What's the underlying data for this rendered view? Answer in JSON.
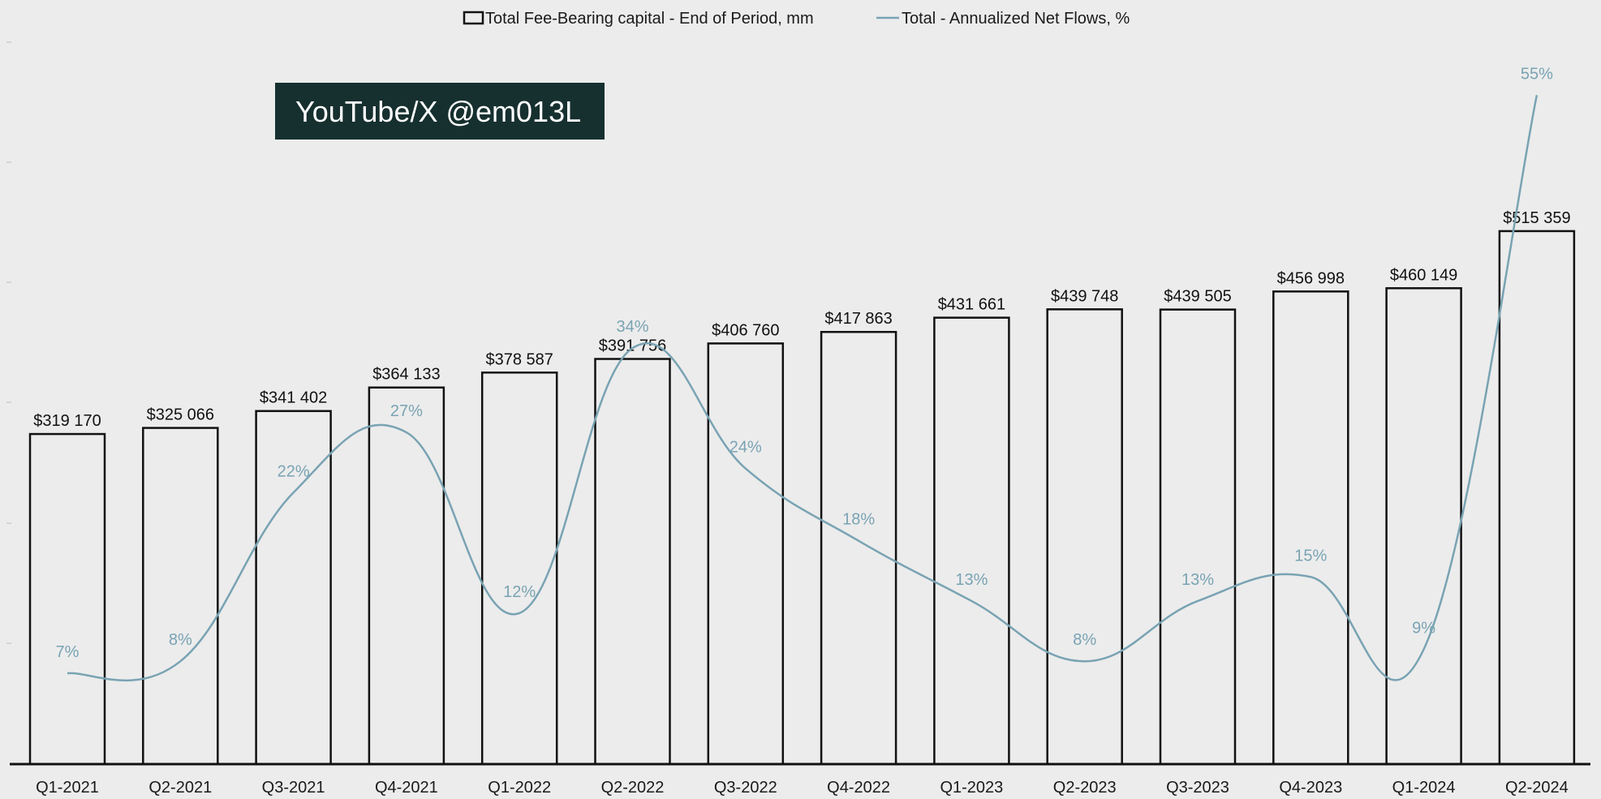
{
  "chart_data": {
    "type": "bar",
    "categories": [
      "Q1-2021",
      "Q2-2021",
      "Q3-2021",
      "Q4-2021",
      "Q1-2022",
      "Q2-2022",
      "Q3-2022",
      "Q4-2022",
      "Q1-2023",
      "Q2-2023",
      "Q3-2023",
      "Q4-2023",
      "Q1-2024",
      "Q2-2024"
    ],
    "series": [
      {
        "name": "Total Fee-Bearing capital - End of Period, mm",
        "type": "bar",
        "values": [
          319170,
          325066,
          341402,
          364133,
          378587,
          391756,
          406760,
          417863,
          431661,
          439748,
          439505,
          456998,
          460149,
          515359
        ],
        "data_labels": [
          "$319 170",
          "$325 066",
          "$341 402",
          "$364 133",
          "$378 587",
          "$391 756",
          "$406 760",
          "$417 863",
          "$431 661",
          "$439 748",
          "$439 505",
          "$456 998",
          "$460 149",
          "$515 359"
        ],
        "color": "#ececec",
        "border_color": "#111111"
      },
      {
        "name": "Total - Annualized Net Flows, %",
        "type": "line",
        "values": [
          7,
          8,
          22,
          27,
          12,
          34,
          24,
          18,
          13,
          8,
          13,
          15,
          9,
          55
        ],
        "data_labels": [
          "7%",
          "8%",
          "22%",
          "27%",
          "12%",
          "34%",
          "24%",
          "18%",
          "13%",
          "8%",
          "13%",
          "15%",
          "9%",
          "55%"
        ],
        "color": "#79a3b3"
      }
    ],
    "legend_position": "top-center",
    "grid": false,
    "watermark": "YouTube/X @em013L",
    "watermark_color": "#16302f"
  }
}
